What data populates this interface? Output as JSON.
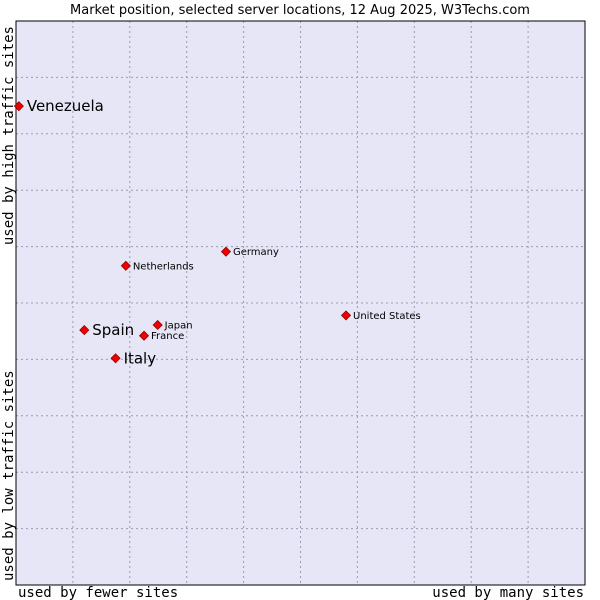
{
  "chart_data": {
    "type": "scatter",
    "title": "Market position, selected server locations, 12 Aug 2025, W3Techs.com",
    "xlabel_left": "used by fewer sites",
    "xlabel_right": "used by many sites",
    "ylabel_top": "used by high traffic sites",
    "ylabel_bottom": "used by low traffic sites",
    "xlim": [
      0,
      100
    ],
    "ylim": [
      0,
      100
    ],
    "grid": true,
    "colors": {
      "plot_bg": "#e6e6f7",
      "point": "#ee0000",
      "point_edge": "#990000",
      "grid": "#9a9ab8"
    },
    "points": [
      {
        "name": "Venezuela",
        "x": 0.5,
        "y": 84.9,
        "emphasis": true
      },
      {
        "name": "Germany",
        "x": 36.9,
        "y": 59.1,
        "emphasis": false
      },
      {
        "name": "Netherlands",
        "x": 19.3,
        "y": 56.6,
        "emphasis": false
      },
      {
        "name": "United States",
        "x": 58.0,
        "y": 47.8,
        "emphasis": false
      },
      {
        "name": "Japan",
        "x": 24.9,
        "y": 46.1,
        "emphasis": false
      },
      {
        "name": "Spain",
        "x": 12.0,
        "y": 45.2,
        "emphasis": true
      },
      {
        "name": "France",
        "x": 22.5,
        "y": 44.2,
        "emphasis": false
      },
      {
        "name": "Italy",
        "x": 17.5,
        "y": 40.2,
        "emphasis": true
      }
    ]
  }
}
